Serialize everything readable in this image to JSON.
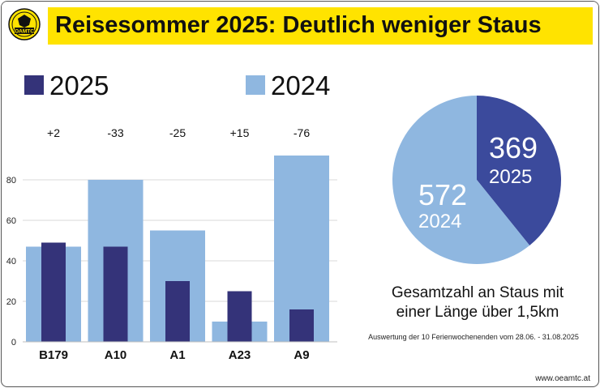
{
  "header": {
    "title": "Reisesommer 2025: Deutlich weniger Staus",
    "logo_text": "OAMTC"
  },
  "legend": [
    {
      "label": "2025",
      "color": "#343379"
    },
    {
      "label": "2024",
      "color": "#8fb7e0"
    }
  ],
  "chart_data": [
    {
      "type": "bar",
      "categories": [
        "B179",
        "A10",
        "A1",
        "A23",
        "A9"
      ],
      "series": [
        {
          "name": "2025",
          "values": [
            49,
            47,
            30,
            25,
            16
          ],
          "color": "#343379"
        },
        {
          "name": "2024",
          "values": [
            47,
            80,
            55,
            10,
            92
          ],
          "color": "#8fb7e0"
        }
      ],
      "differences": [
        "+2",
        "-33",
        "-25",
        "+15",
        "-76"
      ],
      "yticks": [
        "0",
        "20",
        "40",
        "60",
        "80"
      ],
      "ylim": [
        0,
        100
      ],
      "grid": true
    },
    {
      "type": "pie",
      "slices": [
        {
          "label": "2025",
          "value": 369,
          "value_text": "369",
          "color": "#3b4a9c"
        },
        {
          "label": "2024",
          "value": 572,
          "value_text": "572",
          "color": "#8fb7e0"
        }
      ]
    }
  ],
  "caption": {
    "line1": "Gesamtzahl an Staus mit",
    "line2": "einer Länge über 1,5km"
  },
  "footnote": "Auswertung der 10 Ferienwochenenden vom 28.06. - 31.08.2025",
  "url": "www.oeamtc.at"
}
